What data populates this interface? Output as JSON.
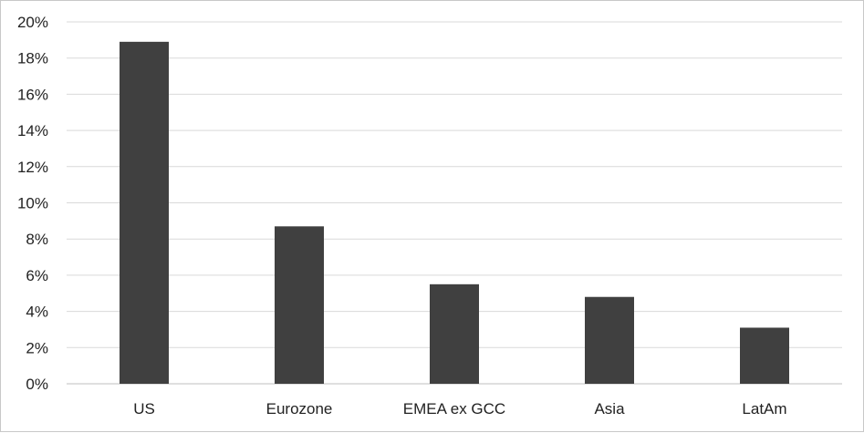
{
  "chart_data": {
    "type": "bar",
    "categories": [
      "US",
      "Eurozone",
      "EMEA ex GCC",
      "Asia",
      "LatAm"
    ],
    "series": [
      {
        "values": [
          18.9,
          8.7,
          5.5,
          4.8,
          3.1
        ]
      }
    ],
    "title": "",
    "xlabel": "",
    "ylabel": "",
    "ylim": [
      0,
      20
    ],
    "y_ticks": [
      "0%",
      "2%",
      "4%",
      "6%",
      "8%",
      "10%",
      "12%",
      "14%",
      "16%",
      "18%",
      "20%"
    ],
    "grid": true,
    "legend": "none",
    "colors": {
      "bar": "#404040",
      "grid": "#d9d9d9",
      "axis": "#bfbfbf"
    }
  }
}
